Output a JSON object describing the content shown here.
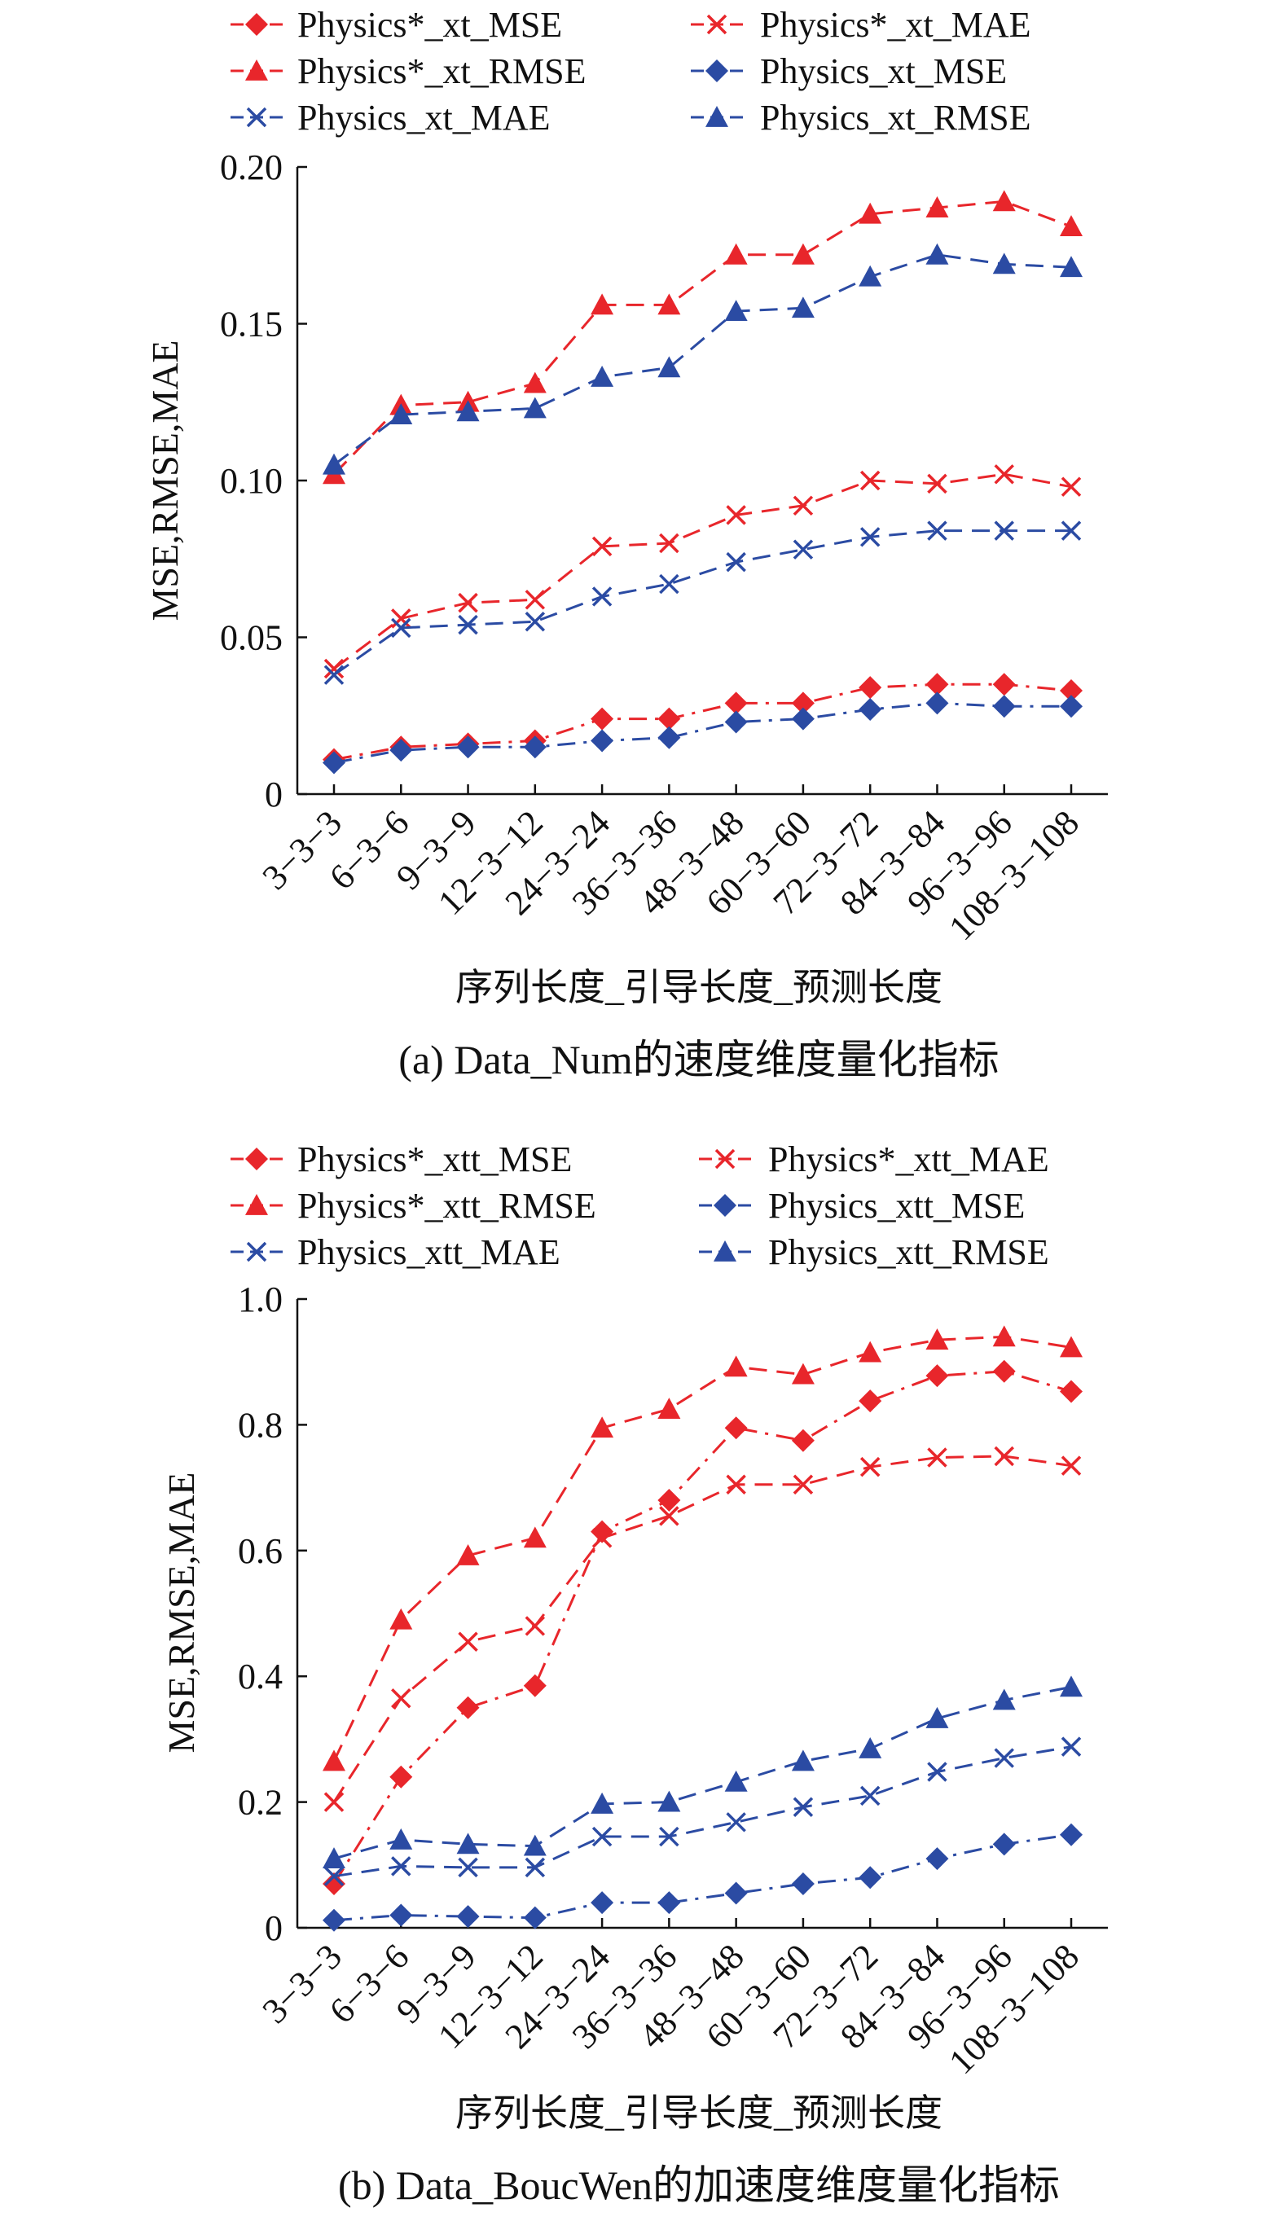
{
  "chart_data": [
    {
      "type": "line",
      "title": "",
      "caption": "(a) Data_Num的速度维度量化指标",
      "xlabel": "序列长度_引导长度_预测长度",
      "ylabel": "MSE,RMSE,MAE",
      "ylim": [
        0,
        0.2
      ],
      "yticks": [
        "0",
        "0.05",
        "0.10",
        "0.15",
        "0.20"
      ],
      "yticks_values": [
        0,
        0.05,
        0.1,
        0.15,
        0.2
      ],
      "categories": [
        "3−3−3",
        "6−3−6",
        "9−3−9",
        "12−3−12",
        "24−3−24",
        "36−3−36",
        "48−3−48",
        "60−3−60",
        "72−3−72",
        "84−3−84",
        "96−3−96",
        "108−3−108"
      ],
      "legend_position": "top",
      "series": [
        {
          "name": "Physics*_xt_MSE",
          "color": "#e8262b",
          "marker": "diamond",
          "dash": "dashdot",
          "values": [
            0.011,
            0.015,
            0.016,
            0.017,
            0.024,
            0.024,
            0.029,
            0.029,
            0.034,
            0.035,
            0.035,
            0.033
          ]
        },
        {
          "name": "Physics*_xt_MAE",
          "color": "#e8262b",
          "marker": "x",
          "dash": "dash",
          "values": [
            0.04,
            0.056,
            0.061,
            0.062,
            0.079,
            0.08,
            0.089,
            0.092,
            0.1,
            0.099,
            0.102,
            0.098
          ]
        },
        {
          "name": "Physics*_xt_RMSE",
          "color": "#e8262b",
          "marker": "triangle",
          "dash": "dash",
          "values": [
            0.102,
            0.124,
            0.125,
            0.131,
            0.156,
            0.156,
            0.172,
            0.172,
            0.185,
            0.187,
            0.189,
            0.181
          ]
        },
        {
          "name": "Physics_xt_MSE",
          "color": "#2b4ba3",
          "marker": "diamond",
          "dash": "dashdot",
          "values": [
            0.01,
            0.014,
            0.015,
            0.015,
            0.017,
            0.018,
            0.023,
            0.024,
            0.027,
            0.029,
            0.028,
            0.028
          ]
        },
        {
          "name": "Physics_xt_MAE",
          "color": "#2b4ba3",
          "marker": "x",
          "dash": "dash",
          "values": [
            0.038,
            0.053,
            0.054,
            0.055,
            0.063,
            0.067,
            0.074,
            0.078,
            0.082,
            0.084,
            0.084,
            0.084
          ]
        },
        {
          "name": "Physics_xt_RMSE",
          "color": "#2b4ba3",
          "marker": "triangle",
          "dash": "dash",
          "values": [
            0.105,
            0.121,
            0.122,
            0.123,
            0.133,
            0.136,
            0.154,
            0.155,
            0.165,
            0.172,
            0.169,
            0.168
          ]
        }
      ]
    },
    {
      "type": "line",
      "title": "",
      "caption": "(b) Data_BoucWen的加速度维度量化指标",
      "xlabel": "序列长度_引导长度_预测长度",
      "ylabel": "MSE,RMSE,MAE",
      "ylim": [
        0,
        1.0
      ],
      "yticks": [
        "0",
        "0.2",
        "0.4",
        "0.6",
        "0.8",
        "1.0"
      ],
      "yticks_values": [
        0,
        0.2,
        0.4,
        0.6,
        0.8,
        1.0
      ],
      "categories": [
        "3−3−3",
        "6−3−6",
        "9−3−9",
        "12−3−12",
        "24−3−24",
        "36−3−36",
        "48−3−48",
        "60−3−60",
        "72−3−72",
        "84−3−84",
        "96−3−96",
        "108−3−108"
      ],
      "legend_position": "top",
      "series": [
        {
          "name": "Physics*_xtt_MSE",
          "color": "#e8262b",
          "marker": "diamond",
          "dash": "dashdot",
          "values": [
            0.07,
            0.24,
            0.35,
            0.385,
            0.63,
            0.68,
            0.795,
            0.775,
            0.838,
            0.878,
            0.885,
            0.853
          ]
        },
        {
          "name": "Physics*_xtt_MAE",
          "color": "#e8262b",
          "marker": "x",
          "dash": "dash",
          "values": [
            0.2,
            0.365,
            0.455,
            0.48,
            0.62,
            0.655,
            0.705,
            0.705,
            0.733,
            0.748,
            0.75,
            0.735
          ]
        },
        {
          "name": "Physics*_xtt_RMSE",
          "color": "#e8262b",
          "marker": "triangle",
          "dash": "dash",
          "values": [
            0.265,
            0.49,
            0.592,
            0.62,
            0.795,
            0.825,
            0.892,
            0.88,
            0.915,
            0.935,
            0.94,
            0.923
          ]
        },
        {
          "name": "Physics_xtt_MSE",
          "color": "#2b4ba3",
          "marker": "diamond",
          "dash": "dashdot",
          "values": [
            0.012,
            0.02,
            0.018,
            0.016,
            0.04,
            0.04,
            0.055,
            0.07,
            0.08,
            0.11,
            0.133,
            0.148
          ]
        },
        {
          "name": "Physics_xtt_MAE",
          "color": "#2b4ba3",
          "marker": "x",
          "dash": "dash",
          "values": [
            0.082,
            0.098,
            0.096,
            0.096,
            0.145,
            0.145,
            0.168,
            0.192,
            0.21,
            0.248,
            0.27,
            0.288
          ]
        },
        {
          "name": "Physics_xtt_RMSE",
          "color": "#2b4ba3",
          "marker": "triangle",
          "dash": "dash",
          "values": [
            0.11,
            0.14,
            0.133,
            0.13,
            0.197,
            0.2,
            0.232,
            0.265,
            0.285,
            0.333,
            0.362,
            0.383
          ]
        }
      ]
    }
  ]
}
